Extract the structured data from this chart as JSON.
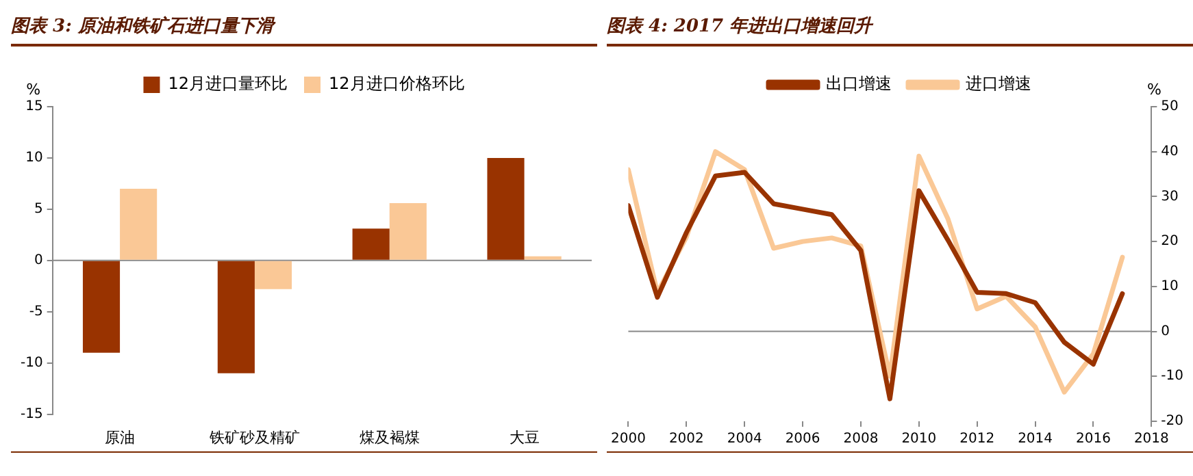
{
  "chart_data": [
    {
      "type": "bar",
      "title": "图表 3: 原油和铁矿石进口量下滑",
      "ylabel": "%",
      "categories": [
        "原油",
        "铁矿砂及精矿",
        "煤及褐煤",
        "大豆"
      ],
      "series": [
        {
          "name": "12月进口量环比",
          "color": "#993300",
          "values": [
            -9,
            -11,
            3.1,
            10
          ]
        },
        {
          "name": "12月进口价格环比",
          "color": "#fac896",
          "values": [
            7,
            -2.8,
            5.6,
            0.4
          ]
        }
      ],
      "ylim": [
        -15,
        15
      ],
      "yticks": [
        -15,
        -10,
        -5,
        0,
        5,
        10,
        15
      ],
      "grid": false,
      "legend": "top",
      "ref_lines": [
        {
          "axis": "y",
          "value": 0,
          "color": "#888888"
        }
      ]
    },
    {
      "type": "line",
      "title": "图表 4: 2017 年进出口增速回升",
      "ylabel": "%",
      "x": [
        2000,
        2001,
        2002,
        2003,
        2004,
        2005,
        2006,
        2007,
        2008,
        2009,
        2010,
        2011,
        2012,
        2013,
        2014,
        2015,
        2016,
        2017
      ],
      "series": [
        {
          "name": "出口增速",
          "color": "#993300",
          "values": [
            28,
            7.6,
            22,
            34.6,
            35.4,
            28.4,
            27.2,
            26,
            18,
            -15,
            31.3,
            20.3,
            8.7,
            8.4,
            6.4,
            -2.4,
            -7.3,
            8.4
          ]
        },
        {
          "name": "进口增速",
          "color": "#fac896",
          "values": [
            36,
            8.6,
            21,
            40,
            36,
            18.5,
            20,
            20.8,
            19,
            -10,
            39,
            25,
            5,
            7.8,
            1,
            -13.5,
            -5,
            16.5
          ]
        }
      ],
      "xlim": [
        2000,
        2018
      ],
      "xticks": [
        2000,
        2002,
        2004,
        2006,
        2008,
        2010,
        2012,
        2014,
        2016,
        2018
      ],
      "ylim": [
        -20,
        50
      ],
      "yticks": [
        -20,
        -10,
        0,
        10,
        20,
        30,
        40,
        50
      ],
      "grid": false,
      "legend": "top",
      "marker": "none",
      "line_style": "solid",
      "ref_lines": [
        {
          "axis": "y",
          "value": 0,
          "color": "#888888"
        }
      ]
    }
  ]
}
